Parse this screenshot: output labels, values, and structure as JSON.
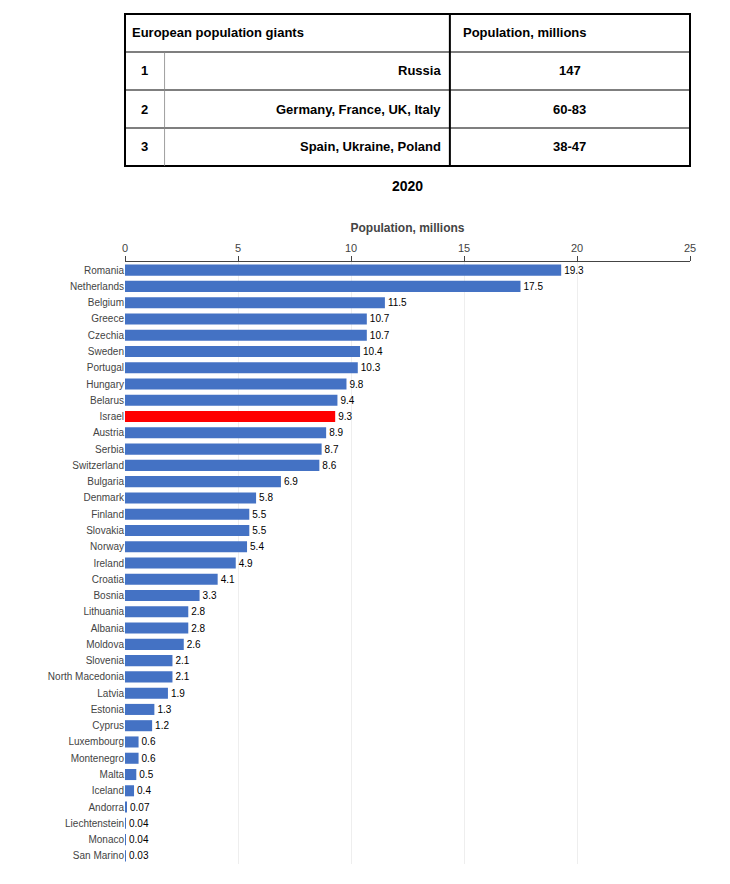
{
  "chart_data": {
    "type": "bar",
    "orientation": "horizontal",
    "xlabel": "Population, millions",
    "annotations": [
      "2020"
    ],
    "table": {
      "headers": [
        "European population giants",
        "Population, millions"
      ],
      "rows": [
        [
          "1",
          "Russia",
          "147"
        ],
        [
          "2",
          "Germany, France, UK, Italy",
          "60-83"
        ],
        [
          "3",
          "Spain, Ukraine, Poland",
          "38-47"
        ]
      ]
    },
    "categories": [
      "Romania",
      "Netherlands",
      "Belgium",
      "Greece",
      "Czechia",
      "Sweden",
      "Portugal",
      "Hungary",
      "Belarus",
      "Israel",
      "Austria",
      "Serbia",
      "Switzerland",
      "Bulgaria",
      "Denmark",
      "Finland",
      "Slovakia",
      "Norway",
      "Ireland",
      "Croatia",
      "Bosnia",
      "Lithuania",
      "Albania",
      "Moldova",
      "Slovenia",
      "North Macedonia",
      "Latvia",
      "Estonia",
      "Cyprus",
      "Luxembourg",
      "Montenegro",
      "Malta",
      "Iceland",
      "Andorra",
      "Liechtenstein",
      "Monaco",
      "San Marino"
    ],
    "values": [
      19.3,
      17.5,
      11.5,
      10.7,
      10.7,
      10.4,
      10.3,
      9.8,
      9.4,
      9.3,
      8.9,
      8.7,
      8.6,
      6.9,
      5.8,
      5.5,
      5.5,
      5.4,
      4.9,
      4.1,
      3.3,
      2.8,
      2.8,
      2.6,
      2.1,
      2.1,
      1.9,
      1.3,
      1.2,
      0.6,
      0.6,
      0.5,
      0.4,
      0.07,
      0.04,
      0.04,
      0.03
    ],
    "colors": [
      "#4472C4",
      "#4472C4",
      "#4472C4",
      "#4472C4",
      "#4472C4",
      "#4472C4",
      "#4472C4",
      "#4472C4",
      "#4472C4",
      "#FF0000",
      "#4472C4",
      "#4472C4",
      "#4472C4",
      "#4472C4",
      "#4472C4",
      "#4472C4",
      "#4472C4",
      "#4472C4",
      "#4472C4",
      "#4472C4",
      "#4472C4",
      "#4472C4",
      "#4472C4",
      "#4472C4",
      "#4472C4",
      "#4472C4",
      "#4472C4",
      "#4472C4",
      "#4472C4",
      "#4472C4",
      "#4472C4",
      "#4472C4",
      "#4472C4",
      "#4472C4",
      "#4472C4",
      "#4472C4",
      "#4472C4"
    ],
    "xlim": [
      0,
      25
    ],
    "xticks": [
      0,
      5,
      10,
      15,
      20,
      25
    ],
    "grid": true,
    "data_labels": true
  }
}
